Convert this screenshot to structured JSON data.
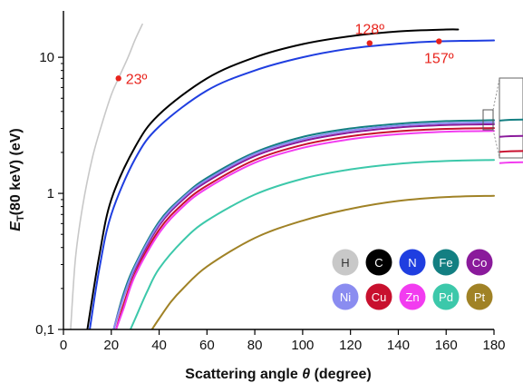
{
  "chart_data": {
    "type": "line",
    "title": "",
    "xlabel": "Scattering angle θ (degree)",
    "xlabel_parts": [
      "Scattering angle ",
      "θ",
      " (degree)"
    ],
    "ylabel": "ET(80 keV) (eV)",
    "ylabel_parts": [
      "E",
      "T",
      "(80 keV) (eV)"
    ],
    "xlim": [
      0,
      180
    ],
    "ylim": [
      0.1,
      20
    ],
    "yscale": "log",
    "xticks": [
      0,
      20,
      40,
      60,
      80,
      100,
      120,
      140,
      160,
      180
    ],
    "xtick_labels": [
      "0",
      "20",
      "40",
      "60",
      "80",
      "100",
      "120",
      "140",
      "160",
      "180"
    ],
    "yticks": [
      0.1,
      1,
      10
    ],
    "ytick_labels": [
      "0,1",
      "1",
      "10"
    ],
    "grid": false,
    "legend_position": "bottom-right",
    "series": [
      {
        "name": "H",
        "color": "#c8c8c8",
        "text_color": "#333333",
        "x": [
          3,
          5,
          8,
          12,
          16,
          20,
          23,
          27,
          30,
          33
        ],
        "y": [
          0.1,
          0.33,
          0.8,
          1.8,
          3.2,
          5.3,
          7.0,
          10.0,
          13.5,
          17.5
        ]
      },
      {
        "name": "C",
        "color": "#000000",
        "text_color": "#ffffff",
        "x": [
          10,
          15,
          20,
          30,
          40,
          60,
          80,
          100,
          120,
          140,
          160,
          165
        ],
        "y": [
          0.1,
          0.35,
          0.9,
          2.2,
          3.8,
          7.0,
          10.0,
          12.5,
          14.3,
          15.5,
          16.0,
          16.0
        ]
      },
      {
        "name": "N",
        "color": "#1f3ee0",
        "text_color": "#ffffff",
        "x": [
          11,
          15,
          20,
          30,
          40,
          60,
          80,
          100,
          120,
          140,
          157,
          180
        ],
        "y": [
          0.1,
          0.28,
          0.7,
          1.8,
          3.1,
          5.7,
          8.0,
          10.0,
          11.6,
          12.6,
          13.1,
          13.3
        ]
      },
      {
        "name": "Fe",
        "color": "#137f82",
        "text_color": "#ffffff",
        "x": [
          21,
          25,
          30,
          40,
          50,
          60,
          80,
          100,
          120,
          140,
          160,
          180
        ],
        "y": [
          0.1,
          0.18,
          0.3,
          0.62,
          0.95,
          1.3,
          2.0,
          2.6,
          3.0,
          3.25,
          3.4,
          3.45
        ]
      },
      {
        "name": "Co",
        "color": "#8a1a9b",
        "text_color": "#ffffff",
        "x": [
          21,
          25,
          30,
          40,
          50,
          60,
          80,
          100,
          120,
          140,
          160,
          180
        ],
        "y": [
          0.1,
          0.17,
          0.28,
          0.58,
          0.9,
          1.22,
          1.88,
          2.42,
          2.8,
          3.05,
          3.18,
          3.22
        ]
      },
      {
        "name": "Ni",
        "color": "#8a8cf0",
        "text_color": "#ffffff",
        "x": [
          21,
          25,
          30,
          40,
          50,
          60,
          80,
          100,
          120,
          140,
          160,
          180
        ],
        "y": [
          0.1,
          0.17,
          0.29,
          0.6,
          0.93,
          1.26,
          1.95,
          2.5,
          2.9,
          3.15,
          3.28,
          3.33
        ]
      },
      {
        "name": "Cu",
        "color": "#c8102e",
        "text_color": "#ffffff",
        "x": [
          22,
          25,
          30,
          40,
          50,
          60,
          80,
          100,
          120,
          140,
          160,
          180
        ],
        "y": [
          0.1,
          0.15,
          0.26,
          0.54,
          0.84,
          1.14,
          1.76,
          2.27,
          2.63,
          2.86,
          2.98,
          3.02
        ]
      },
      {
        "name": "Zn",
        "color": "#f23cf0",
        "text_color": "#ffffff",
        "x": [
          22,
          25,
          30,
          40,
          50,
          60,
          80,
          100,
          120,
          140,
          160,
          180
        ],
        "y": [
          0.1,
          0.14,
          0.25,
          0.51,
          0.8,
          1.09,
          1.68,
          2.16,
          2.5,
          2.72,
          2.84,
          2.88
        ]
      },
      {
        "name": "Pd",
        "color": "#3cc8aa",
        "text_color": "#ffffff",
        "x": [
          28,
          30,
          35,
          40,
          50,
          60,
          80,
          100,
          120,
          140,
          160,
          180
        ],
        "y": [
          0.1,
          0.12,
          0.19,
          0.28,
          0.45,
          0.63,
          0.98,
          1.28,
          1.5,
          1.65,
          1.73,
          1.76
        ]
      },
      {
        "name": "Pt",
        "color": "#a08226",
        "text_color": "#ffffff",
        "x": [
          37,
          40,
          45,
          50,
          60,
          80,
          100,
          120,
          140,
          160,
          180
        ],
        "y": [
          0.1,
          0.12,
          0.16,
          0.2,
          0.29,
          0.47,
          0.63,
          0.77,
          0.88,
          0.94,
          0.96
        ]
      }
    ],
    "annotations": [
      {
        "text": "23º",
        "x": 23,
        "y": 7.0,
        "color": "#e8231c",
        "label_side": "right"
      },
      {
        "text": "128º",
        "x": 128,
        "y": 12.7,
        "color": "#e8231c",
        "label_side": "above"
      },
      {
        "text": "157º",
        "x": 157,
        "y": 13.1,
        "color": "#e8231c",
        "label_side": "below"
      }
    ]
  }
}
